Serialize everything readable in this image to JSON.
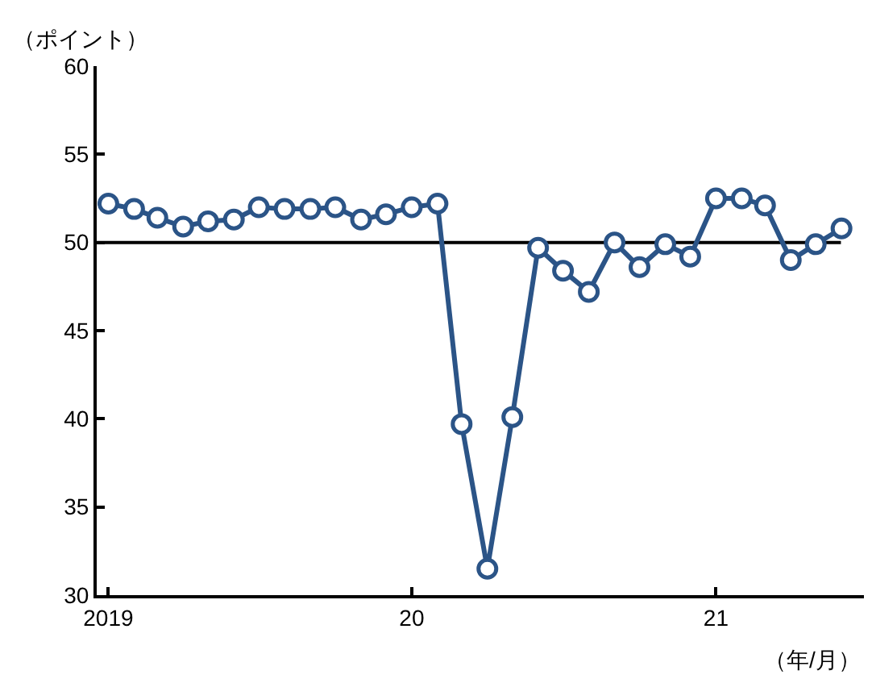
{
  "chart_data": {
    "type": "line",
    "ylabel": "（ポイント）",
    "xlabel": "（年/月）",
    "x": [
      "2019-01",
      "2019-02",
      "2019-03",
      "2019-04",
      "2019-05",
      "2019-06",
      "2019-07",
      "2019-08",
      "2019-09",
      "2019-10",
      "2019-11",
      "2019-12",
      "2020-01",
      "2020-02",
      "2020-03",
      "2020-04",
      "2020-05",
      "2020-06",
      "2020-07",
      "2020-08",
      "2020-09",
      "2020-10",
      "2020-11",
      "2020-12",
      "2021-01",
      "2021-02",
      "2021-03",
      "2021-04",
      "2021-05",
      "2021-06"
    ],
    "series": [
      {
        "color": "#2b5487",
        "values": [
          52.2,
          51.9,
          51.4,
          50.9,
          51.2,
          51.3,
          52.0,
          51.9,
          51.9,
          52.0,
          51.3,
          51.6,
          52.0,
          52.2,
          39.7,
          31.5,
          40.1,
          49.7,
          48.4,
          47.2,
          50.0,
          48.6,
          49.9,
          49.2,
          52.5,
          52.5,
          52.1,
          49.0,
          49.9,
          50.8
        ]
      }
    ],
    "xlim": [
      "2018-12-18",
      "2021-06-28"
    ],
    "xticks": [
      {
        "value": "2019-01",
        "label": "2019"
      },
      {
        "value": "2020-01",
        "label": "20"
      },
      {
        "value": "2021-01",
        "label": "21"
      }
    ],
    "ylim": [
      30,
      60
    ],
    "yticks": [
      30,
      35,
      40,
      45,
      50,
      55,
      60
    ],
    "ref_lines": [
      {
        "axis": "y",
        "value": 50,
        "color": "#000000"
      }
    ],
    "marker": "circle",
    "line_style": "solid"
  }
}
